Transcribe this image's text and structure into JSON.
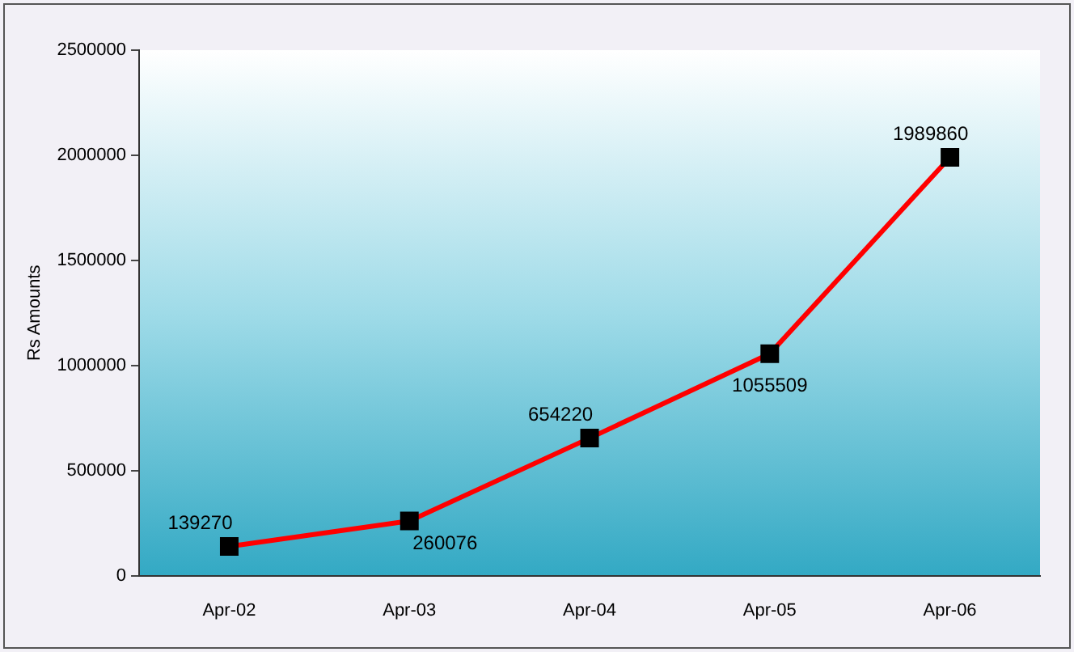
{
  "chart_data": {
    "type": "line",
    "ylabel": "Rs Amounts",
    "categories": [
      "Apr-02",
      "Apr-03",
      "Apr-04",
      "Apr-05",
      "Apr-06"
    ],
    "series": [
      {
        "color": "#ff0000",
        "values": [
          139270,
          260076,
          654220,
          1055509,
          1989860
        ]
      }
    ],
    "ylim": [
      0,
      2500000
    ],
    "yticks": [
      0,
      500000,
      1000000,
      1500000,
      2000000,
      2500000
    ],
    "marker": "square",
    "data_labels": true,
    "grid": false,
    "legend": false
  }
}
